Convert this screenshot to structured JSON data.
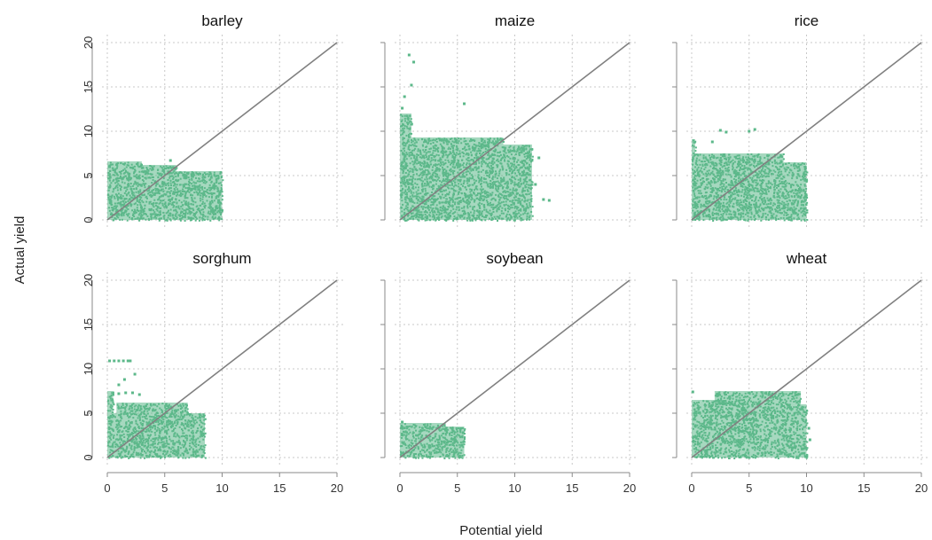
{
  "chart_data": {
    "type": "scatter",
    "xlabel": "Potential yield",
    "ylabel": "Actual yield",
    "xlim": [
      0,
      20
    ],
    "ylim": [
      0,
      20
    ],
    "x_ticks": [
      0,
      5,
      10,
      15,
      20
    ],
    "y_ticks": [
      0,
      5,
      10,
      15,
      20
    ],
    "grid": true,
    "point_color": "#5cb88a",
    "reference_line": {
      "from": [
        0,
        0
      ],
      "to": [
        20,
        20
      ],
      "color": "#808080"
    },
    "panels": [
      {
        "title": "barley",
        "regions": [
          [
            0,
            10,
            0,
            5.5
          ],
          [
            0,
            6,
            5.5,
            6.2
          ],
          [
            0,
            3,
            6.2,
            6.6
          ]
        ],
        "points": [
          [
            0.2,
            6.0
          ],
          [
            9.7,
            2.2
          ],
          [
            9.5,
            1.5
          ],
          [
            9.8,
            3.1
          ],
          [
            5.5,
            6.7
          ]
        ]
      },
      {
        "title": "maize",
        "regions": [
          [
            0,
            11.5,
            0,
            8.5
          ],
          [
            0,
            9,
            8.5,
            9.3
          ],
          [
            0,
            1,
            9.3,
            12
          ]
        ],
        "points": [
          [
            0.8,
            18.6
          ],
          [
            1.2,
            17.8
          ],
          [
            1.0,
            15.2
          ],
          [
            0.4,
            13.9
          ],
          [
            5.6,
            13.1
          ],
          [
            0.2,
            12.6
          ],
          [
            12.5,
            2.3
          ],
          [
            13.0,
            2.2
          ],
          [
            11.8,
            4.0
          ],
          [
            12.1,
            7.0
          ]
        ]
      },
      {
        "title": "rice",
        "regions": [
          [
            0,
            10,
            0,
            6.5
          ],
          [
            0,
            8,
            6.5,
            7.5
          ],
          [
            0,
            0.3,
            7.5,
            9.1
          ]
        ],
        "points": [
          [
            2.5,
            10.1
          ],
          [
            3.0,
            9.9
          ],
          [
            5.0,
            10.0
          ],
          [
            5.5,
            10.2
          ],
          [
            1.8,
            8.8
          ],
          [
            10.0,
            4.5
          ],
          [
            9.9,
            5.8
          ]
        ]
      },
      {
        "title": "sorghum",
        "regions": [
          [
            0,
            8.5,
            0,
            5
          ],
          [
            0.8,
            7,
            5,
            6.2
          ],
          [
            0,
            0.5,
            5,
            7.5
          ]
        ],
        "points": [
          [
            0.2,
            10.9
          ],
          [
            0.6,
            10.9
          ],
          [
            1.0,
            10.9
          ],
          [
            1.4,
            10.9
          ],
          [
            1.8,
            10.9
          ],
          [
            2.0,
            10.9
          ],
          [
            1.0,
            7.2
          ],
          [
            1.6,
            7.3
          ],
          [
            2.2,
            7.3
          ],
          [
            2.8,
            7.1
          ],
          [
            1.0,
            8.2
          ],
          [
            1.5,
            8.8
          ],
          [
            2.4,
            9.4
          ]
        ]
      },
      {
        "title": "soybean",
        "regions": [
          [
            0,
            5.6,
            0,
            3.5
          ],
          [
            0,
            4,
            3.5,
            3.9
          ]
        ],
        "points": [
          [
            5.4,
            1.4
          ],
          [
            5.5,
            2.8
          ],
          [
            0.2,
            4.0
          ]
        ]
      },
      {
        "title": "wheat",
        "regions": [
          [
            0,
            10,
            0,
            6
          ],
          [
            2,
            9.5,
            6,
            7.5
          ],
          [
            0,
            3,
            6,
            6.5
          ]
        ],
        "points": [
          [
            10.2,
            3.3
          ],
          [
            10.3,
            2.0
          ],
          [
            0.1,
            7.4
          ]
        ]
      }
    ]
  }
}
